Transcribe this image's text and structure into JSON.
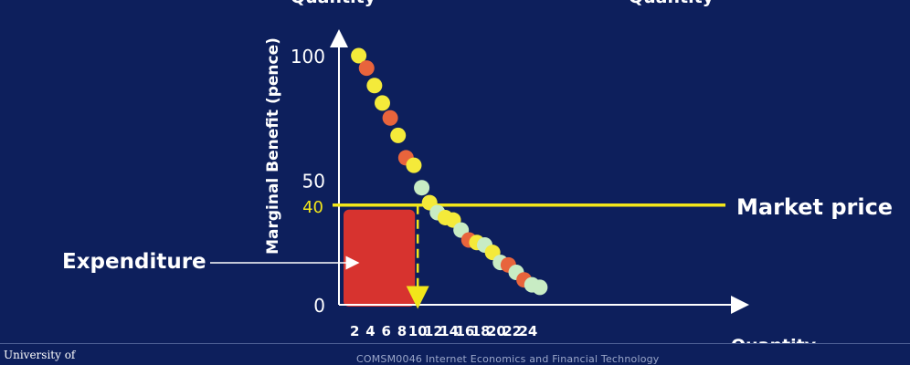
{
  "header": {
    "left_cut_label": "Quantity",
    "right_cut_label": "Quantity"
  },
  "footer": {
    "logo_text": "University of",
    "course": "COMSM0046 Internet Economics and Financial Technology"
  },
  "annotations": {
    "market_price": "Market price",
    "expenditure": "Expenditure",
    "price_tick": "40"
  },
  "colors": {
    "background": "#0d1f5c",
    "yellow_dot": "#f4ea3a",
    "orange_dot": "#e8643c",
    "green_dot": "#c8ecc4",
    "price_line": "#f2e61a",
    "expenditure_box": "#d7332f"
  },
  "chart_data": {
    "type": "scatter",
    "xlabel": "Quantity",
    "ylabel": "Marginal Benefit  (pence)",
    "xlim": [
      0,
      25
    ],
    "ylim": [
      0,
      105
    ],
    "x_ticks": [
      "2",
      "4",
      "6",
      "8",
      "10",
      "12",
      "14",
      "16",
      "18",
      "20",
      "22",
      "24"
    ],
    "y_ticks": [
      "0",
      "50",
      "100"
    ],
    "market_price": 40,
    "market_quantity": 10,
    "expenditure_region": {
      "x": [
        0,
        10
      ],
      "y": [
        0,
        40
      ]
    },
    "points": [
      {
        "x": 1,
        "y": 100,
        "color": "yellow"
      },
      {
        "x": 2,
        "y": 95,
        "color": "orange"
      },
      {
        "x": 3,
        "y": 88,
        "color": "yellow"
      },
      {
        "x": 4,
        "y": 81,
        "color": "yellow"
      },
      {
        "x": 5,
        "y": 75,
        "color": "orange"
      },
      {
        "x": 6,
        "y": 68,
        "color": "yellow"
      },
      {
        "x": 7,
        "y": 59,
        "color": "orange"
      },
      {
        "x": 8,
        "y": 56,
        "color": "yellow"
      },
      {
        "x": 9,
        "y": 47,
        "color": "green"
      },
      {
        "x": 10,
        "y": 41,
        "color": "yellow"
      },
      {
        "x": 11,
        "y": 37,
        "color": "green"
      },
      {
        "x": 12,
        "y": 35,
        "color": "yellow"
      },
      {
        "x": 13,
        "y": 34,
        "color": "yellow"
      },
      {
        "x": 14,
        "y": 30,
        "color": "green"
      },
      {
        "x": 15,
        "y": 26,
        "color": "orange"
      },
      {
        "x": 16,
        "y": 25,
        "color": "yellow"
      },
      {
        "x": 17,
        "y": 24,
        "color": "green"
      },
      {
        "x": 18,
        "y": 21,
        "color": "yellow"
      },
      {
        "x": 19,
        "y": 17,
        "color": "green"
      },
      {
        "x": 20,
        "y": 16,
        "color": "orange"
      },
      {
        "x": 21,
        "y": 13,
        "color": "green"
      },
      {
        "x": 22,
        "y": 10,
        "color": "orange"
      },
      {
        "x": 23,
        "y": 8,
        "color": "green"
      },
      {
        "x": 24,
        "y": 7,
        "color": "green"
      }
    ]
  }
}
